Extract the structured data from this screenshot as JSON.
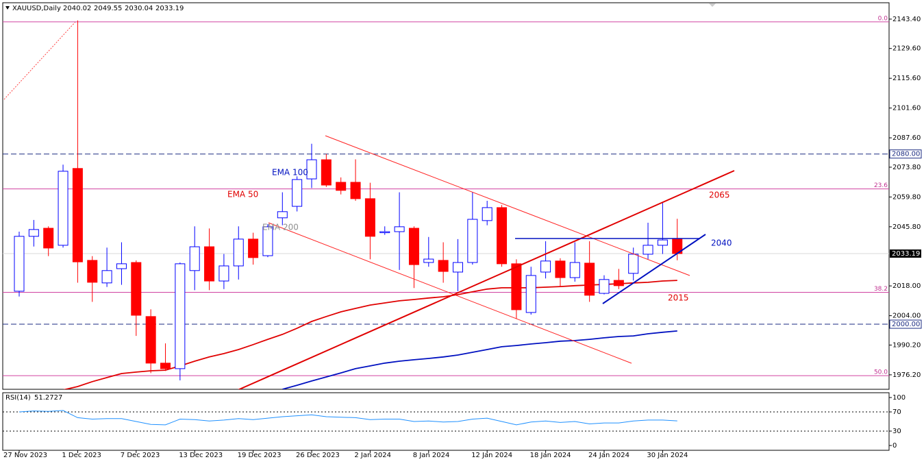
{
  "chart_data": {
    "type": "candlestick",
    "title": "XAUUSD,Daily",
    "categories": [
      "27 Nov 2023",
      null,
      null,
      null,
      "1 Dec 2023",
      null,
      null,
      null,
      "7 Dec 2023",
      null,
      null,
      null,
      "13 Dec 2023",
      null,
      null,
      null,
      "19 Dec 2023",
      null,
      null,
      null,
      "26 Dec 2023",
      null,
      null,
      null,
      "2 Jan 2024",
      null,
      null,
      null,
      "8 Jan 2024",
      null,
      null,
      null,
      "12 Jan 2024",
      null,
      null,
      null,
      "18 Jan 2024",
      null,
      null,
      null,
      "24 Jan 2024",
      null,
      null,
      null,
      "30 Jan 2024",
      null
    ],
    "open": [
      2015.5,
      2041.3,
      2045.1,
      2037.1,
      2073.2,
      2030.0,
      2019.4,
      2026.1,
      2029.0,
      2003.6,
      1981.7,
      1979.1,
      2025.2,
      2036.4,
      2020.3,
      2027.4,
      2040.0,
      2032.2,
      2050.0,
      2055.4,
      2068.3,
      2077.3,
      2066.7,
      2066.7,
      2059.0,
      2043.0,
      2043.5,
      2045.1,
      2029.0,
      2030.0,
      2024.5,
      2029.0,
      2048.7,
      2054.8,
      2028.4,
      2005.5,
      2024.5,
      2029.7,
      2021.9,
      2028.7,
      2014.5,
      2020.6,
      2023.9,
      2032.9,
      2037.1,
      2040.02
    ],
    "high": [
      2043.5,
      2049.0,
      2046.0,
      2075.0,
      2142.8,
      2032.0,
      2036.0,
      2038.5,
      2030.0,
      2007.0,
      1991.0,
      2029.0,
      2046.0,
      2045.0,
      2033.0,
      2046.0,
      2043.0,
      2047.0,
      2062.0,
      2069.5,
      2084.8,
      2080.0,
      2069.0,
      2077.5,
      2066.5,
      2046.0,
      2062.0,
      2046.0,
      2041.0,
      2038.5,
      2040.0,
      2062.0,
      2058.0,
      2056.0,
      2030.5,
      2027.0,
      2039.0,
      2031.0,
      2038.5,
      2039.0,
      2023.0,
      2026.0,
      2036.0,
      2047.7,
      2057.5,
      2049.55
    ],
    "low": [
      2013.0,
      2036.5,
      2032.0,
      2036.0,
      2019.5,
      2010.5,
      2017.5,
      2018.5,
      1994.5,
      1977.0,
      1978.0,
      1973.6,
      2016.0,
      2016.0,
      2016.5,
      2021.0,
      2028.0,
      2031.5,
      2046.5,
      2053.0,
      2064.0,
      2064.5,
      2061.0,
      2058.0,
      2030.5,
      2042.0,
      2025.5,
      2017.0,
      2027.0,
      2019.5,
      2015.5,
      2028.0,
      2046.5,
      2027.0,
      2002.5,
      2004.5,
      2021.5,
      2017.5,
      2020.0,
      2010.5,
      2014.0,
      2016.5,
      2020.5,
      2030.5,
      2033.0,
      2030.04
    ],
    "close": [
      2041.3,
      2044.5,
      2035.8,
      2071.9,
      2029.3,
      2019.7,
      2025.2,
      2028.4,
      2004.2,
      1981.7,
      1979.1,
      2028.4,
      2036.4,
      2020.3,
      2027.4,
      2040.0,
      2031.3,
      2045.8,
      2052.9,
      2068.0,
      2077.3,
      2065.4,
      2062.9,
      2059.0,
      2041.3,
      2043.5,
      2045.8,
      2028.0,
      2030.6,
      2024.8,
      2029.0,
      2049.3,
      2054.8,
      2028.4,
      2006.8,
      2022.9,
      2029.7,
      2021.9,
      2029.0,
      2013.6,
      2021.0,
      2018.1,
      2032.9,
      2037.1,
      2039.6,
      2033.19
    ],
    "up_color": "#0000ff",
    "down_color": "#ff0000",
    "series": [
      {
        "name": "EMA 50",
        "color": "#e00000",
        "values": [
          1963.0,
          1964.9,
          1966.8,
          1969.1,
          1970.7,
          1973.0,
          1974.9,
          1976.8,
          1977.5,
          1978.1,
          1978.4,
          1980.4,
          1982.6,
          1984.6,
          1986.2,
          1988.1,
          1990.4,
          1992.9,
          1995.2,
          1998.1,
          2001.3,
          2003.6,
          2005.8,
          2007.4,
          2009.0,
          2010.0,
          2011.0,
          2011.6,
          2012.3,
          2012.9,
          2013.9,
          2015.2,
          2016.5,
          2017.1,
          2017.1,
          2017.1,
          2017.4,
          2017.7,
          2018.1,
          2018.4,
          2018.7,
          2019.0,
          2019.4,
          2019.7,
          2020.3,
          2020.6
        ]
      },
      {
        "name": "EMA 100",
        "color": "#0010c0",
        "values": [
          null,
          null,
          null,
          null,
          null,
          null,
          null,
          null,
          null,
          null,
          null,
          null,
          null,
          null,
          null,
          null,
          null,
          null,
          1969.4,
          1971.3,
          1973.3,
          1975.2,
          1977.1,
          1979.1,
          1980.4,
          1981.7,
          1982.6,
          1983.3,
          1983.9,
          1984.6,
          1985.5,
          1986.8,
          1988.1,
          1989.4,
          1990.0,
          1990.7,
          1991.3,
          1992.0,
          1992.3,
          1992.9,
          1993.6,
          1994.2,
          1994.5,
          1995.5,
          1996.2,
          1996.8
        ]
      }
    ],
    "annotations": [
      "EMA 200",
      "2065",
      "2040",
      "2015"
    ],
    "ylim": [
      1969.4,
      2151.1
    ],
    "yticks": [
      {
        "value": 2143.4,
        "label": "2143.40"
      },
      {
        "value": 2129.6,
        "label": "2129.60"
      },
      {
        "value": 2115.6,
        "label": "2115.60"
      },
      {
        "value": 2101.6,
        "label": "2101.60"
      },
      {
        "value": 2087.6,
        "label": "2087.60"
      },
      {
        "value": 2073.8,
        "label": "2073.80"
      },
      {
        "value": 2059.8,
        "label": "2059.80"
      },
      {
        "value": 2045.8,
        "label": "2045.80"
      },
      {
        "value": 2018,
        "label": "2018.00"
      },
      {
        "value": 2004,
        "label": "2004.00"
      },
      {
        "value": 1990.2,
        "label": "1990.20"
      },
      {
        "value": 1976.2,
        "label": "1976.20"
      }
    ],
    "levels": [
      {
        "value": 2080,
        "label": "2080.00"
      },
      {
        "value": 2000,
        "label": "2000.00"
      }
    ],
    "fibonacci": [
      {
        "level": "0.0",
        "price": 2142.1
      },
      {
        "level": "23.6",
        "price": 2063.6
      },
      {
        "level": "38.2",
        "price": 2015.0
      },
      {
        "level": "50.0",
        "price": 1975.8
      }
    ],
    "rsi": {
      "title": "RSI(14)",
      "color": "#1e90ff",
      "values": [
        70,
        72,
        71,
        73,
        58,
        55,
        56,
        56,
        50,
        44,
        43,
        55,
        54,
        51,
        53,
        56,
        54,
        57,
        60,
        62,
        64,
        60,
        59,
        58,
        54,
        55,
        55,
        50,
        51,
        49,
        50,
        55,
        57,
        50,
        43,
        49,
        51,
        48,
        50,
        45,
        47,
        47,
        51,
        53,
        53,
        51.2727
      ],
      "ylim": [
        -10,
        110
      ],
      "yticks": [
        100,
        70,
        30,
        0
      ],
      "levels": [
        70,
        30
      ]
    }
  }
}
